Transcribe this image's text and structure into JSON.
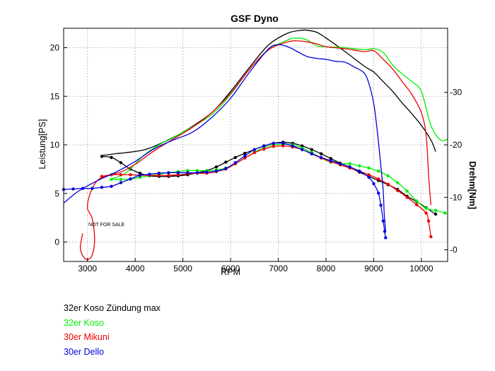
{
  "chart_data": {
    "type": "line",
    "title": "GSF Dyno",
    "xlabel": "RPM",
    "ylabel": "Leistung[PS]",
    "y2label": "Drehm[Nm]",
    "xlim": [
      2500,
      10550
    ],
    "ylim": [
      -2,
      22
    ],
    "y2lim": [
      -2.22,
      42.22
    ],
    "x_ticks": [
      3000,
      4000,
      5000,
      6000,
      7000,
      8000,
      9000,
      10000
    ],
    "y_ticks": [
      0,
      5,
      10,
      15,
      20
    ],
    "y2_ticks": [
      0,
      10,
      20,
      30
    ],
    "x_tick_labels": [
      "3000",
      "4000",
      "5000",
      "6000",
      "7000",
      "8000",
      "9000",
      "10000"
    ],
    "y_tick_labels": [
      "0",
      "5",
      "10",
      "15",
      "20"
    ],
    "y2_tick_labels": [
      "-0",
      "-10",
      "-20",
      "-30"
    ],
    "grid": true,
    "watermark": "NOT FOR SALE",
    "legend_position": "bottom-left",
    "series": [
      {
        "name": "32er Koso Zündung max",
        "color": "#000000",
        "power": {
          "x": [
            3300,
            3600,
            3800,
            4200,
            4600,
            5000,
            5600,
            6000,
            6400,
            6800,
            7200,
            7500,
            7600,
            7800,
            8000,
            8400,
            8800,
            9000,
            9200,
            9400,
            9600,
            9800,
            10000,
            10200,
            10300
          ],
          "y": [
            8.9,
            9.1,
            9.2,
            9.5,
            10.3,
            11.3,
            13.3,
            15.5,
            18.0,
            20.3,
            21.5,
            21.8,
            21.8,
            21.6,
            21.0,
            19.6,
            18.1,
            17.5,
            16.5,
            15.5,
            14.3,
            13.2,
            12.0,
            10.5,
            9.3
          ]
        },
        "torque": {
          "x": [
            3300,
            3500,
            3700,
            3900,
            4100,
            4300,
            4500,
            4700,
            4900,
            5100,
            5300,
            5500,
            5700,
            5900,
            6100,
            6300,
            6500,
            6700,
            6900,
            7100,
            7300,
            7500,
            7700,
            7900,
            8100,
            8300,
            8500,
            8700,
            8900,
            9100,
            9300,
            9500,
            9700,
            9900,
            10100,
            10300
          ],
          "y": [
            17.8,
            17.6,
            16.6,
            15.4,
            14.6,
            14.1,
            14.0,
            14.0,
            14.1,
            14.3,
            14.7,
            15.1,
            15.8,
            16.7,
            17.6,
            18.4,
            19.1,
            19.8,
            20.3,
            20.5,
            20.3,
            19.8,
            19.1,
            18.3,
            17.4,
            16.5,
            15.7,
            14.8,
            14.0,
            13.2,
            12.4,
            11.5,
            10.2,
            9.2,
            8.0,
            6.8
          ]
        }
      },
      {
        "name": "32er Koso",
        "color": "#00ee00",
        "power": {
          "x": [
            3500,
            3800,
            4200,
            4600,
            5000,
            5600,
            6000,
            6400,
            6800,
            7200,
            7400,
            7600,
            7800,
            8000,
            8400,
            8800,
            9000,
            9200,
            9400,
            9600,
            9800,
            10000,
            10200,
            10400,
            10550
          ],
          "y": [
            6.5,
            7.1,
            9.0,
            10.3,
            11.3,
            13.1,
            15.2,
            17.8,
            19.8,
            20.8,
            21.0,
            20.8,
            20.2,
            20.1,
            20.0,
            19.8,
            19.9,
            19.5,
            18.2,
            17.3,
            16.5,
            15.5,
            12.0,
            10.5,
            10.6
          ]
        },
        "torque": {
          "x": [
            3500,
            3700,
            3900,
            4100,
            4300,
            4500,
            4700,
            4900,
            5100,
            5300,
            5500,
            5700,
            5900,
            6100,
            6300,
            6500,
            6700,
            6900,
            7100,
            7300,
            7500,
            7700,
            7900,
            8100,
            8300,
            8500,
            8700,
            8900,
            9100,
            9300,
            9500,
            9700,
            9900,
            10100,
            10300,
            10500
          ],
          "y": [
            13.4,
            13.4,
            13.5,
            13.8,
            14.1,
            14.4,
            14.7,
            14.9,
            15.1,
            15.1,
            15.1,
            15.2,
            15.6,
            16.4,
            17.5,
            18.6,
            19.5,
            20.0,
            20.1,
            20.0,
            19.4,
            18.5,
            17.5,
            16.7,
            16.4,
            16.4,
            16.0,
            15.6,
            15.0,
            14.1,
            12.8,
            11.2,
            9.3,
            7.9,
            7.5,
            7.0
          ]
        }
      },
      {
        "name": "30er Mikuni",
        "color": "#ee0000",
        "power": {
          "x": [
            2900,
            2850,
            2900,
            3000,
            3100,
            3150,
            3100,
            3000,
            3050,
            3200,
            3400,
            3700,
            4000,
            4400,
            4800,
            5200,
            5600,
            6000,
            6400,
            6800,
            7200,
            7400,
            7600,
            7800,
            8000,
            8400,
            8800,
            9000,
            9200,
            9400,
            9600,
            9800,
            10000,
            10100,
            10150,
            10200
          ],
          "y": [
            0.9,
            -0.5,
            -1.4,
            -1.8,
            -1.3,
            0.3,
            2.4,
            3.5,
            4.9,
            6.3,
            6.8,
            7.2,
            8.0,
            9.4,
            10.6,
            11.8,
            13.3,
            15.3,
            17.8,
            19.8,
            20.6,
            20.7,
            20.6,
            20.4,
            20.1,
            19.9,
            19.6,
            19.7,
            18.8,
            17.8,
            16.5,
            15.2,
            13.3,
            11.0,
            7.0,
            3.8
          ]
        },
        "torque": {
          "x": [
            3300,
            3500,
            3700,
            3900,
            4100,
            4300,
            4500,
            4700,
            4900,
            5100,
            5300,
            5500,
            5700,
            5900,
            6100,
            6300,
            6500,
            6700,
            6900,
            7100,
            7300,
            7500,
            7700,
            7900,
            8100,
            8300,
            8500,
            8700,
            8900,
            9100,
            9300,
            9500,
            9700,
            9900,
            10100,
            10150,
            10200
          ],
          "y": [
            14.0,
            14.3,
            14.3,
            14.3,
            14.2,
            14.2,
            14.2,
            14.2,
            14.3,
            14.5,
            14.6,
            14.6,
            14.9,
            15.4,
            16.4,
            17.5,
            18.5,
            19.2,
            19.7,
            19.8,
            19.6,
            19.1,
            18.3,
            17.5,
            16.8,
            16.2,
            15.6,
            15.0,
            14.3,
            13.5,
            12.5,
            11.3,
            10.0,
            8.6,
            7.0,
            5.5,
            2.5
          ]
        }
      },
      {
        "name": "30er Dello",
        "color": "#0000dd",
        "power": {
          "x": [
            2500,
            2800,
            3200,
            3600,
            4000,
            4400,
            4800,
            5200,
            5600,
            6000,
            6400,
            6800,
            7000,
            7200,
            7400,
            7600,
            7800,
            8000,
            8200,
            8400,
            8600,
            8800,
            8900,
            9000,
            9050,
            9100,
            9150,
            9200,
            9220,
            9250
          ],
          "y": [
            4.0,
            5.2,
            6.3,
            7.2,
            8.3,
            9.6,
            10.5,
            11.3,
            12.8,
            14.8,
            17.5,
            19.9,
            20.3,
            20.1,
            19.6,
            19.1,
            18.9,
            18.8,
            18.6,
            18.5,
            18.0,
            17.4,
            16.3,
            14.3,
            12.5,
            10.3,
            7.8,
            5.3,
            3.0,
            1.2
          ]
        },
        "torque": {
          "x": [
            2500,
            2700,
            2900,
            3100,
            3300,
            3500,
            3700,
            3900,
            4100,
            4300,
            4500,
            4700,
            4900,
            5100,
            5300,
            5500,
            5700,
            5900,
            6100,
            6300,
            6500,
            6700,
            6900,
            7100,
            7300,
            7500,
            7700,
            7900,
            8100,
            8300,
            8500,
            8700,
            8900,
            9000,
            9100,
            9150,
            9200,
            9230,
            9250
          ],
          "y": [
            11.5,
            11.6,
            11.7,
            11.7,
            11.9,
            12.1,
            12.8,
            13.5,
            14.2,
            14.4,
            14.6,
            14.7,
            14.7,
            14.7,
            14.7,
            14.8,
            15.0,
            15.5,
            16.6,
            17.9,
            19.1,
            19.8,
            20.3,
            20.3,
            19.8,
            19.1,
            18.3,
            17.6,
            17.0,
            16.4,
            15.8,
            15.0,
            13.8,
            12.6,
            10.8,
            8.5,
            5.5,
            3.5,
            2.3
          ]
        }
      }
    ]
  }
}
